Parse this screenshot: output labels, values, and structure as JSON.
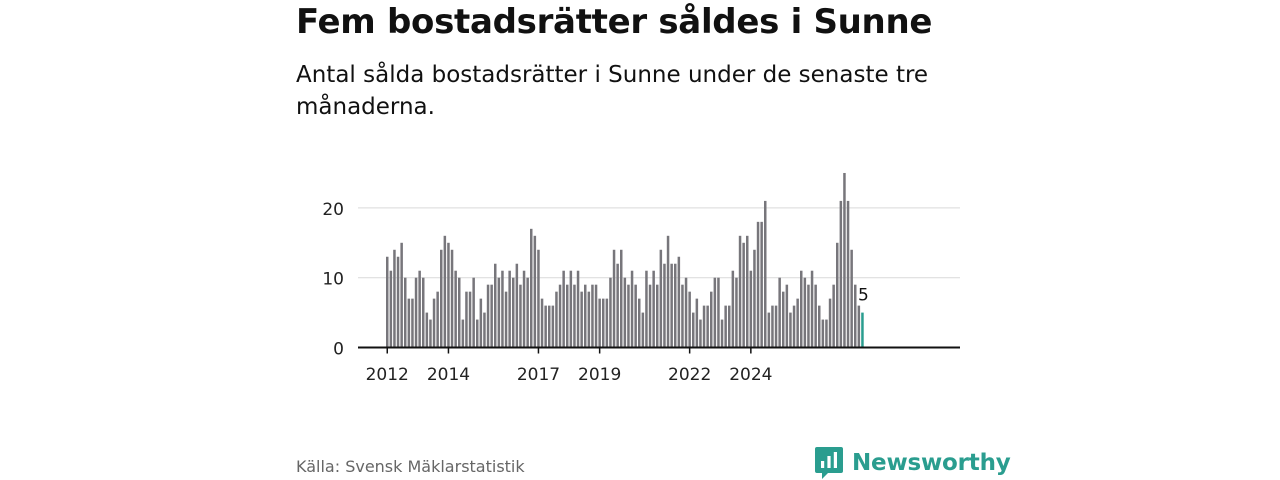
{
  "header": {
    "title": "Fem bostadsrätter såldes i Sunne",
    "subtitle": "Antal sålda bostadsrätter i Sunne under de senaste tre månaderna."
  },
  "footer": {
    "source": "Källa: Svensk Mäklarstatistik",
    "brand": "Newsworthy"
  },
  "colors": {
    "bar": "#77767b",
    "highlight": "#2a9d8f",
    "grid": "#d9d9d9",
    "axis": "#111111"
  },
  "chart_data": {
    "type": "bar",
    "title": "",
    "xlabel": "",
    "ylabel": "",
    "ylim": [
      0,
      26
    ],
    "y_ticks": [
      0,
      10,
      20
    ],
    "x_tick_labels": [
      {
        "label": "2012",
        "index": 0
      },
      {
        "label": "2014",
        "index": 17
      },
      {
        "label": "2017",
        "index": 42
      },
      {
        "label": "2019",
        "index": 59
      },
      {
        "label": "2022",
        "index": 84
      },
      {
        "label": "2024",
        "index": 101
      }
    ],
    "highlight_label": "5",
    "series": [
      {
        "name": "Sålda bostadsrätter",
        "values": [
          13,
          11,
          14,
          13,
          15,
          10,
          7,
          7,
          10,
          11,
          10,
          5,
          4,
          7,
          8,
          14,
          16,
          15,
          14,
          11,
          10,
          4,
          8,
          8,
          10,
          4,
          7,
          5,
          9,
          9,
          12,
          10,
          11,
          8,
          11,
          10,
          12,
          9,
          11,
          10,
          17,
          16,
          14,
          7,
          6,
          6,
          6,
          8,
          9,
          11,
          9,
          11,
          9,
          11,
          8,
          9,
          8,
          9,
          9,
          7,
          7,
          7,
          10,
          14,
          12,
          14,
          10,
          9,
          11,
          9,
          7,
          5,
          11,
          9,
          11,
          9,
          14,
          12,
          16,
          12,
          12,
          13,
          9,
          10,
          8,
          5,
          7,
          4,
          6,
          6,
          8,
          10,
          10,
          4,
          6,
          6,
          11,
          10,
          16,
          15,
          16,
          11,
          14,
          18,
          18,
          21,
          5,
          6,
          6,
          10,
          8,
          9,
          5,
          6,
          7,
          11,
          10,
          9,
          11,
          9,
          6,
          4,
          4,
          7,
          9,
          15,
          21,
          25,
          21,
          14,
          9,
          6,
          5
        ]
      }
    ]
  }
}
